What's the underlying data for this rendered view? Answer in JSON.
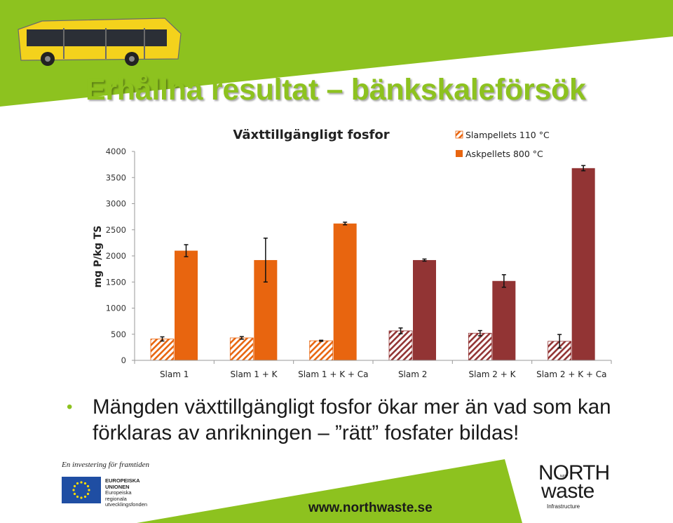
{
  "slide": {
    "title": "Erhållna resultat – bänkskaleförsök",
    "bullet": "Mängden växttillgängligt fosfor ökar mer än vad som kan förklaras av anrikningen – ”rätt” fosfater bildas!",
    "eu_tagline": "En investering för framtiden",
    "eu_lines": [
      "EUROPEISKA",
      "UNIONEN",
      "Europeiska",
      "regionala",
      "utvecklingsfonden"
    ],
    "url": "www.northwaste.se",
    "logo": {
      "line1": "NORTH",
      "line2": "waste",
      "line3": "Infrastructure",
      "badge": "N65°"
    },
    "colors": {
      "green": "#8dc21f",
      "orange": "#e8650f",
      "darkred": "#923434"
    }
  },
  "chart_data": {
    "type": "bar",
    "title": "Växttillgängligt fosfor",
    "ylabel": "mg P/kg TS",
    "xlabel": "",
    "ylim": [
      0,
      4000
    ],
    "yticks": [
      0,
      500,
      1000,
      1500,
      2000,
      2500,
      3000,
      3500,
      4000
    ],
    "categories": [
      "Slam 1",
      "Slam 1 + K",
      "Slam 1 + K + Ca",
      "Slam 2",
      "Slam 2 + K",
      "Slam 2 + K + Ca"
    ],
    "series": [
      {
        "name": "Slampellets 110 °C",
        "values": [
          410,
          430,
          375,
          565,
          520,
          365
        ],
        "errors": [
          40,
          25,
          10,
          55,
          50,
          130
        ],
        "pattern": "hatched"
      },
      {
        "name": "Askpellets 800 °C",
        "values": [
          2100,
          1920,
          2620,
          1920,
          1520,
          3680
        ],
        "errors": [
          115,
          420,
          25,
          20,
          120,
          50
        ],
        "pattern": "solid"
      }
    ],
    "grid": false,
    "legend": "top-right"
  }
}
